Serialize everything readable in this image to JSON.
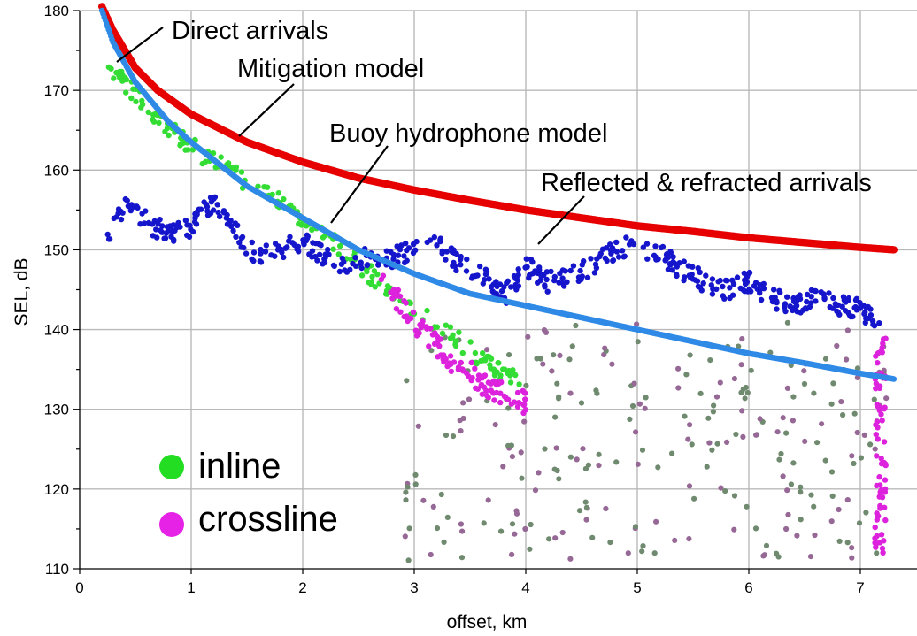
{
  "chart_data": {
    "type": "scatter",
    "title": "",
    "xlabel": "offset, km",
    "ylabel": "SEL, dB",
    "xlim": [
      0,
      7.3
    ],
    "ylim": [
      110,
      180
    ],
    "xticks": [
      "0",
      "1",
      "2",
      "3",
      "4",
      "5",
      "6",
      "7"
    ],
    "yticks": [
      "110",
      "120",
      "130",
      "140",
      "150",
      "160",
      "170",
      "180"
    ],
    "grid": true,
    "curves": [
      {
        "name": "Mitigation model",
        "color": "#e60000",
        "x": [
          0.2,
          0.3,
          0.5,
          0.7,
          1.0,
          1.5,
          2.0,
          2.5,
          3.0,
          3.5,
          4.0,
          4.5,
          5.0,
          5.5,
          6.0,
          6.5,
          7.0,
          7.3
        ],
        "y": [
          180.5,
          177.5,
          172.8,
          170.0,
          167.0,
          163.5,
          161.0,
          159.0,
          157.5,
          156.2,
          155.0,
          154.0,
          153.0,
          152.3,
          151.5,
          150.9,
          150.3,
          150.0
        ]
      },
      {
        "name": "Buoy hydrophone model",
        "color": "#2f8ae6",
        "x": [
          0.2,
          0.3,
          0.5,
          0.8,
          1.0,
          1.5,
          2.0,
          2.5,
          3.0,
          3.5,
          4.0,
          4.5,
          5.0,
          5.5,
          6.0,
          6.5,
          7.0,
          7.3
        ],
        "y": [
          180.0,
          176.0,
          171.0,
          166.0,
          163.5,
          158.0,
          154.0,
          150.0,
          147.0,
          144.5,
          143.0,
          141.5,
          140.0,
          138.5,
          137.0,
          135.8,
          134.5,
          133.8
        ]
      }
    ],
    "series": [
      {
        "name": "inline",
        "color": "#33dd33",
        "x": [
          0.25,
          0.4,
          0.6,
          0.8,
          1.0,
          1.2,
          1.5,
          1.8,
          2.0,
          2.2,
          2.4,
          2.6,
          2.8,
          3.0,
          3.2,
          3.4,
          3.6,
          3.8,
          4.0
        ],
        "y": [
          173.0,
          171.0,
          168.0,
          165.5,
          163.0,
          161.0,
          158.5,
          156.0,
          154.0,
          152.0,
          149.5,
          147.0,
          145.0,
          142.5,
          140.5,
          138.5,
          136.5,
          134.5,
          133.0
        ]
      },
      {
        "name": "crossline",
        "color": "#dd22dd",
        "x": [
          0.25,
          2.7,
          2.8,
          3.0,
          3.2,
          3.4,
          3.6,
          3.8,
          4.0,
          7.1,
          7.2
        ],
        "y": [
          174.0,
          148.0,
          145.0,
          141.0,
          138.0,
          135.5,
          133.5,
          132.0,
          131.0,
          125.0,
          122.0
        ]
      },
      {
        "name": "Reflected & refracted arrivals",
        "color": "#1515cc",
        "x": [
          0.25,
          0.4,
          0.6,
          0.8,
          1.0,
          1.2,
          1.4,
          1.6,
          1.8,
          2.0,
          2.2,
          2.4,
          2.6,
          2.8,
          3.0,
          3.2,
          3.4,
          3.6,
          3.8,
          4.0,
          4.2,
          4.4,
          4.6,
          4.8,
          5.0,
          5.2,
          5.4,
          5.6,
          5.8,
          6.0,
          6.2,
          6.4,
          6.6,
          6.8,
          7.0,
          7.2
        ],
        "y": [
          152.0,
          155.5,
          153.5,
          152.0,
          153.0,
          156.0,
          152.0,
          149.0,
          150.0,
          151.0,
          149.0,
          148.0,
          149.5,
          149.0,
          150.0,
          151.0,
          148.0,
          147.0,
          144.0,
          148.0,
          146.0,
          147.0,
          148.0,
          150.0,
          150.5,
          149.5,
          147.5,
          146.0,
          145.0,
          146.0,
          144.0,
          143.0,
          144.0,
          143.0,
          142.5,
          141.0
        ]
      }
    ],
    "annotations": [
      "Direct arrivals",
      "Mitigation model",
      "Buoy hydrophone model",
      "Reflected & refracted arrivals"
    ],
    "legend": {
      "placement": "bottom-left",
      "entries": [
        {
          "label": "inline",
          "color": "#22dd22"
        },
        {
          "label": "crossline",
          "color": "#e622e6"
        }
      ]
    }
  }
}
